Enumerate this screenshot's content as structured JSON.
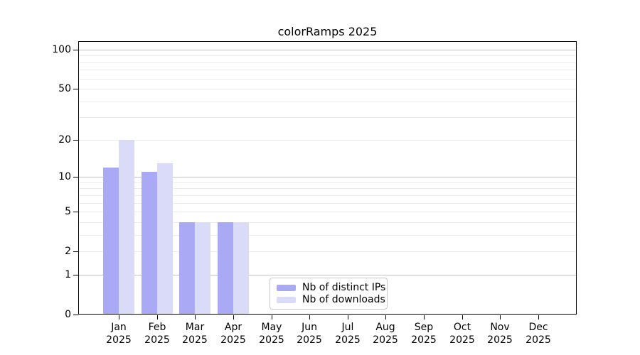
{
  "title": "colorRamps 2025",
  "chart_data": {
    "type": "bar",
    "title": "colorRamps 2025",
    "categories": [
      "Jan",
      "Feb",
      "Mar",
      "Apr",
      "May",
      "Jun",
      "Jul",
      "Aug",
      "Sep",
      "Oct",
      "Nov",
      "Dec"
    ],
    "year_label": "2025",
    "series": [
      {
        "name": "Nb of distinct IPs",
        "color": "#a9a9f6",
        "values": [
          12,
          11,
          4,
          4,
          0,
          0,
          0,
          0,
          0,
          0,
          0,
          0
        ]
      },
      {
        "name": "Nb of downloads",
        "color": "#dadaf9",
        "values": [
          20,
          13,
          4,
          4,
          0,
          0,
          0,
          0,
          0,
          0,
          0,
          0
        ]
      }
    ],
    "xlabel": "",
    "ylabel": "",
    "yscale": "log1p",
    "ylim": [
      0,
      116
    ],
    "yticks": [
      0,
      1,
      2,
      5,
      10,
      20,
      50,
      100
    ],
    "grid": {
      "on": true,
      "major_values": [
        1,
        10,
        100
      ],
      "minor_values": [
        2,
        3,
        4,
        5,
        6,
        7,
        8,
        9,
        20,
        30,
        40,
        50,
        60,
        70,
        80,
        90
      ],
      "major_color": "#c3c3c3",
      "minor_color": "#ececec"
    },
    "legend_position": "lower center inside",
    "bar_colors": {
      "distinct_ips": "#a9a9f6",
      "downloads": "#dadaf9"
    },
    "axis_color": "#000000"
  }
}
